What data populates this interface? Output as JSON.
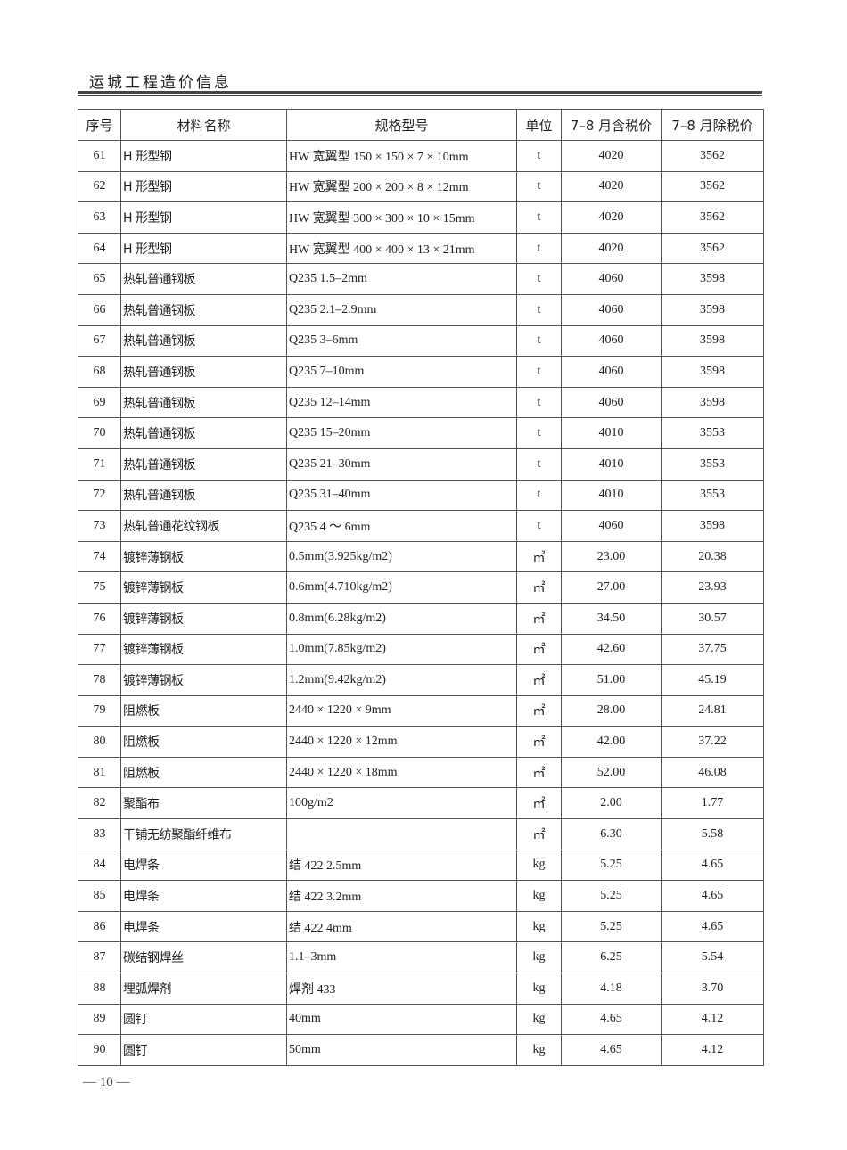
{
  "header": {
    "title": "运城工程造价信息"
  },
  "table": {
    "columns": [
      "序号",
      "材料名称",
      "规格型号",
      "单位",
      "7–8 月含税价",
      "7–8 月除税价"
    ],
    "rows": [
      [
        "61",
        "H 形型钢",
        "HW 宽翼型 150 × 150 × 7 × 10mm",
        "t",
        "4020",
        "3562"
      ],
      [
        "62",
        "H 形型钢",
        "HW 宽翼型 200 × 200 × 8 × 12mm",
        "t",
        "4020",
        "3562"
      ],
      [
        "63",
        "H 形型钢",
        "HW 宽翼型 300 × 300 × 10 × 15mm",
        "t",
        "4020",
        "3562"
      ],
      [
        "64",
        "H 形型钢",
        "HW 宽翼型 400 × 400 × 13 × 21mm",
        "t",
        "4020",
        "3562"
      ],
      [
        "65",
        "热轧普通钢板",
        "Q235 1.5–2mm",
        "t",
        "4060",
        "3598"
      ],
      [
        "66",
        "热轧普通钢板",
        "Q235 2.1–2.9mm",
        "t",
        "4060",
        "3598"
      ],
      [
        "67",
        "热轧普通钢板",
        "Q235 3–6mm",
        "t",
        "4060",
        "3598"
      ],
      [
        "68",
        "热轧普通钢板",
        "Q235 7–10mm",
        "t",
        "4060",
        "3598"
      ],
      [
        "69",
        "热轧普通钢板",
        "Q235 12–14mm",
        "t",
        "4060",
        "3598"
      ],
      [
        "70",
        "热轧普通钢板",
        "Q235 15–20mm",
        "t",
        "4010",
        "3553"
      ],
      [
        "71",
        "热轧普通钢板",
        "Q235 21–30mm",
        "t",
        "4010",
        "3553"
      ],
      [
        "72",
        "热轧普通钢板",
        "Q235 31–40mm",
        "t",
        "4010",
        "3553"
      ],
      [
        "73",
        "热轧普通花纹钢板",
        "Q235 4 ～ 6mm",
        "t",
        "4060",
        "3598"
      ],
      [
        "74",
        "镀锌薄钢板",
        "0.5mm(3.925kg/m2)",
        "㎡",
        "23.00",
        "20.38"
      ],
      [
        "75",
        "镀锌薄钢板",
        "0.6mm(4.710kg/m2)",
        "㎡",
        "27.00",
        "23.93"
      ],
      [
        "76",
        "镀锌薄钢板",
        "0.8mm(6.28kg/m2)",
        "㎡",
        "34.50",
        "30.57"
      ],
      [
        "77",
        "镀锌薄钢板",
        "1.0mm(7.85kg/m2)",
        "㎡",
        "42.60",
        "37.75"
      ],
      [
        "78",
        "镀锌薄钢板",
        "1.2mm(9.42kg/m2)",
        "㎡",
        "51.00",
        "45.19"
      ],
      [
        "79",
        "阻燃板",
        "2440 × 1220 × 9mm",
        "㎡",
        "28.00",
        "24.81"
      ],
      [
        "80",
        "阻燃板",
        "2440 × 1220 × 12mm",
        "㎡",
        "42.00",
        "37.22"
      ],
      [
        "81",
        "阻燃板",
        "2440 × 1220 × 18mm",
        "㎡",
        "52.00",
        "46.08"
      ],
      [
        "82",
        "聚酯布",
        "100g/m2",
        "㎡",
        "2.00",
        "1.77"
      ],
      [
        "83",
        "干铺无纺聚酯纤维布",
        "",
        "㎡",
        "6.30",
        "5.58"
      ],
      [
        "84",
        "电焊条",
        "结 422  2.5mm",
        "kg",
        "5.25",
        "4.65"
      ],
      [
        "85",
        "电焊条",
        "结 422  3.2mm",
        "kg",
        "5.25",
        "4.65"
      ],
      [
        "86",
        "电焊条",
        "结 422  4mm",
        "kg",
        "5.25",
        "4.65"
      ],
      [
        "87",
        "碳结钢焊丝",
        "1.1–3mm",
        "kg",
        "6.25",
        "5.54"
      ],
      [
        "88",
        "埋弧焊剂",
        "焊剂 433",
        "kg",
        "4.18",
        "3.70"
      ],
      [
        "89",
        "圆钉",
        "40mm",
        "kg",
        "4.65",
        "4.12"
      ],
      [
        "90",
        "圆钉",
        "50mm",
        "kg",
        "4.65",
        "4.12"
      ]
    ]
  },
  "footer": {
    "page": "— 10 —"
  }
}
